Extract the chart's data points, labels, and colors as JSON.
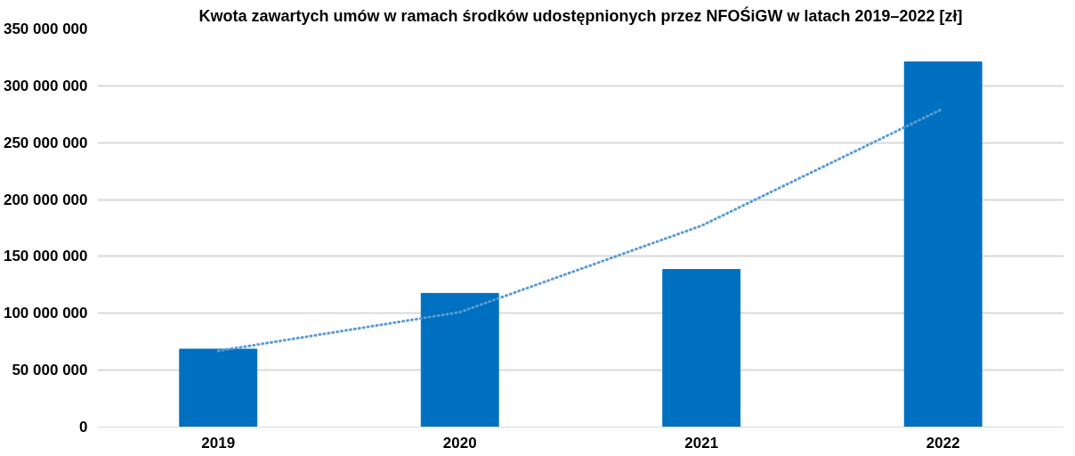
{
  "chart_data": {
    "type": "bar",
    "title": "Kwota zawartych umów w ramach środków udostępnionych przez NFOŚiGW w latach 2019–2022 [zł]",
    "categories": [
      "2019",
      "2020",
      "2021",
      "2022"
    ],
    "series": [
      {
        "color": "#0070c0",
        "values": [
          68500000,
          117500000,
          138500000,
          321000000
        ]
      },
      {
        "type": "line",
        "color": "#5b9bd5",
        "line_style": "dotted",
        "values": [
          67000000,
          101000000,
          177000000,
          280000000
        ]
      }
    ],
    "ylim": [
      0,
      350000000
    ],
    "yticks": [
      {
        "value": 0,
        "label": "0"
      },
      {
        "value": 50000000,
        "label": "50 000 000"
      },
      {
        "value": 100000000,
        "label": "100 000 000"
      },
      {
        "value": 150000000,
        "label": "150 000 000"
      },
      {
        "value": 200000000,
        "label": "200 000 000"
      },
      {
        "value": 250000000,
        "label": "250 000 000"
      },
      {
        "value": 300000000,
        "label": "300 000 000"
      },
      {
        "value": 350000000,
        "label": "350 000 000"
      }
    ],
    "grid": "y"
  }
}
